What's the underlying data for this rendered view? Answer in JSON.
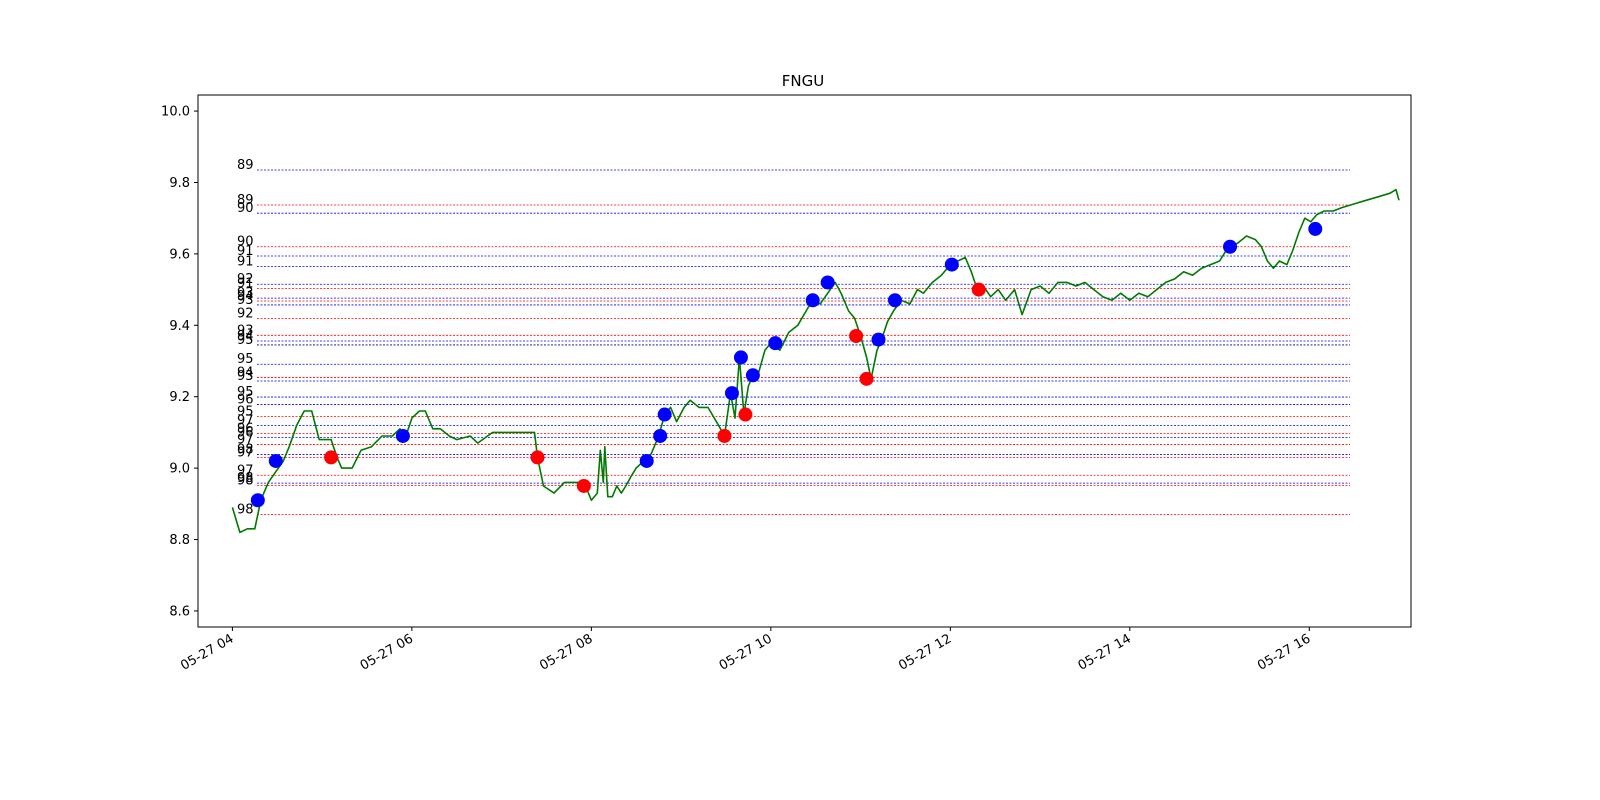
{
  "chart_data": {
    "type": "line",
    "title": "FNGU",
    "xlabel": "",
    "ylabel": "",
    "ylim": [
      8.555,
      10.045
    ],
    "xlim": [
      "2022-05-27 03:37",
      "2022-05-27 17:08"
    ],
    "x_ticks": [
      {
        "t": "2022-05-27 04:00",
        "label": "05-27 04"
      },
      {
        "t": "2022-05-27 06:00",
        "label": "05-27 06"
      },
      {
        "t": "2022-05-27 08:00",
        "label": "05-27 08"
      },
      {
        "t": "2022-05-27 10:00",
        "label": "05-27 10"
      },
      {
        "t": "2022-05-27 12:00",
        "label": "05-27 12"
      },
      {
        "t": "2022-05-27 14:00",
        "label": "05-27 14"
      },
      {
        "t": "2022-05-27 16:00",
        "label": "05-27 16"
      }
    ],
    "y_ticks": [
      8.6,
      8.8,
      9.0,
      9.2,
      9.4,
      9.6,
      9.8,
      10.0
    ],
    "grid": false,
    "series": [
      {
        "kind": "line",
        "color": "#007a00",
        "points": [
          [
            "2022-05-27 04:00",
            8.89
          ],
          [
            "2022-05-27 04:05",
            8.82
          ],
          [
            "2022-05-27 04:10",
            8.83
          ],
          [
            "2022-05-27 04:15",
            8.83
          ],
          [
            "2022-05-27 04:19",
            8.91
          ],
          [
            "2022-05-27 04:24",
            8.96
          ],
          [
            "2022-05-27 04:29",
            8.99
          ],
          [
            "2022-05-27 04:34",
            9.02
          ],
          [
            "2022-05-27 04:38",
            9.06
          ],
          [
            "2022-05-27 04:43",
            9.12
          ],
          [
            "2022-05-27 04:48",
            9.16
          ],
          [
            "2022-05-27 04:53",
            9.16
          ],
          [
            "2022-05-27 04:58",
            9.08
          ],
          [
            "2022-05-27 05:06",
            9.08
          ],
          [
            "2022-05-27 05:10",
            9.03
          ],
          [
            "2022-05-27 05:13",
            9.0
          ],
          [
            "2022-05-27 05:20",
            9.0
          ],
          [
            "2022-05-27 05:26",
            9.05
          ],
          [
            "2022-05-27 05:33",
            9.06
          ],
          [
            "2022-05-27 05:40",
            9.09
          ],
          [
            "2022-05-27 05:47",
            9.09
          ],
          [
            "2022-05-27 05:52",
            9.11
          ],
          [
            "2022-05-27 05:56",
            9.09
          ],
          [
            "2022-05-27 06:00",
            9.14
          ],
          [
            "2022-05-27 06:05",
            9.16
          ],
          [
            "2022-05-27 06:09",
            9.16
          ],
          [
            "2022-05-27 06:14",
            9.11
          ],
          [
            "2022-05-27 06:19",
            9.11
          ],
          [
            "2022-05-27 06:25",
            9.09
          ],
          [
            "2022-05-27 06:30",
            9.08
          ],
          [
            "2022-05-27 06:39",
            9.09
          ],
          [
            "2022-05-27 06:44",
            9.07
          ],
          [
            "2022-05-27 06:54",
            9.1
          ],
          [
            "2022-05-27 07:00",
            9.1
          ],
          [
            "2022-05-27 07:15",
            9.1
          ],
          [
            "2022-05-27 07:22",
            9.1
          ],
          [
            "2022-05-27 07:24",
            9.03
          ],
          [
            "2022-05-27 07:28",
            8.95
          ],
          [
            "2022-05-27 07:35",
            8.93
          ],
          [
            "2022-05-27 07:42",
            8.96
          ],
          [
            "2022-05-27 07:55",
            8.96
          ],
          [
            "2022-05-27 07:56",
            8.95
          ],
          [
            "2022-05-27 08:00",
            8.91
          ],
          [
            "2022-05-27 08:04",
            8.93
          ],
          [
            "2022-05-27 08:06",
            9.05
          ],
          [
            "2022-05-27 08:08",
            8.96
          ],
          [
            "2022-05-27 08:09",
            9.06
          ],
          [
            "2022-05-27 08:11",
            8.92
          ],
          [
            "2022-05-27 08:14",
            8.92
          ],
          [
            "2022-05-27 08:17",
            8.95
          ],
          [
            "2022-05-27 08:20",
            8.93
          ],
          [
            "2022-05-27 08:23",
            8.95
          ],
          [
            "2022-05-27 08:27",
            8.98
          ],
          [
            "2022-05-27 08:30",
            9.0
          ],
          [
            "2022-05-27 08:35",
            9.02
          ],
          [
            "2022-05-27 08:40",
            9.04
          ],
          [
            "2022-05-27 08:45",
            9.09
          ],
          [
            "2022-05-27 08:49",
            9.15
          ],
          [
            "2022-05-27 08:53",
            9.17
          ],
          [
            "2022-05-27 08:57",
            9.13
          ],
          [
            "2022-05-27 09:02",
            9.17
          ],
          [
            "2022-05-27 09:06",
            9.19
          ],
          [
            "2022-05-27 09:12",
            9.17
          ],
          [
            "2022-05-27 09:18",
            9.17
          ],
          [
            "2022-05-27 09:25",
            9.12
          ],
          [
            "2022-05-27 09:29",
            9.09
          ],
          [
            "2022-05-27 09:33",
            9.21
          ],
          [
            "2022-05-27 09:36",
            9.14
          ],
          [
            "2022-05-27 09:39",
            9.31
          ],
          [
            "2022-05-27 09:42",
            9.15
          ],
          [
            "2022-05-27 09:45",
            9.23
          ],
          [
            "2022-05-27 09:48",
            9.26
          ],
          [
            "2022-05-27 09:52",
            9.27
          ],
          [
            "2022-05-27 09:56",
            9.33
          ],
          [
            "2022-05-27 10:00",
            9.35
          ],
          [
            "2022-05-27 10:06",
            9.33
          ],
          [
            "2022-05-27 10:12",
            9.38
          ],
          [
            "2022-05-27 10:18",
            9.4
          ],
          [
            "2022-05-27 10:25",
            9.45
          ],
          [
            "2022-05-27 10:29",
            9.47
          ],
          [
            "2022-05-27 10:33",
            9.46
          ],
          [
            "2022-05-27 10:38",
            9.49
          ],
          [
            "2022-05-27 10:43",
            9.52
          ],
          [
            "2022-05-27 10:47",
            9.49
          ],
          [
            "2022-05-27 10:52",
            9.44
          ],
          [
            "2022-05-27 10:56",
            9.42
          ],
          [
            "2022-05-27 11:00",
            9.37
          ],
          [
            "2022-05-27 11:04",
            9.31
          ],
          [
            "2022-05-27 11:07",
            9.25
          ],
          [
            "2022-05-27 11:11",
            9.33
          ],
          [
            "2022-05-27 11:14",
            9.36
          ],
          [
            "2022-05-27 11:18",
            9.41
          ],
          [
            "2022-05-27 11:22",
            9.44
          ],
          [
            "2022-05-27 11:27",
            9.47
          ],
          [
            "2022-05-27 11:33",
            9.46
          ],
          [
            "2022-05-27 11:38",
            9.5
          ],
          [
            "2022-05-27 11:42",
            9.49
          ],
          [
            "2022-05-27 11:48",
            9.52
          ],
          [
            "2022-05-27 11:54",
            9.54
          ],
          [
            "2022-05-27 12:00",
            9.57
          ],
          [
            "2022-05-27 12:05",
            9.58
          ],
          [
            "2022-05-27 12:10",
            9.59
          ],
          [
            "2022-05-27 12:14",
            9.55
          ],
          [
            "2022-05-27 12:18",
            9.5
          ],
          [
            "2022-05-27 12:22",
            9.51
          ],
          [
            "2022-05-27 12:27",
            9.48
          ],
          [
            "2022-05-27 12:32",
            9.5
          ],
          [
            "2022-05-27 12:37",
            9.47
          ],
          [
            "2022-05-27 12:43",
            9.5
          ],
          [
            "2022-05-27 12:48",
            9.43
          ],
          [
            "2022-05-27 12:54",
            9.5
          ],
          [
            "2022-05-27 13:00",
            9.51
          ],
          [
            "2022-05-27 13:06",
            9.49
          ],
          [
            "2022-05-27 13:12",
            9.52
          ],
          [
            "2022-05-27 13:18",
            9.52
          ],
          [
            "2022-05-27 13:24",
            9.51
          ],
          [
            "2022-05-27 13:30",
            9.52
          ],
          [
            "2022-05-27 13:36",
            9.5
          ],
          [
            "2022-05-27 13:42",
            9.48
          ],
          [
            "2022-05-27 13:48",
            9.47
          ],
          [
            "2022-05-27 13:54",
            9.49
          ],
          [
            "2022-05-27 14:00",
            9.47
          ],
          [
            "2022-05-27 14:06",
            9.49
          ],
          [
            "2022-05-27 14:12",
            9.48
          ],
          [
            "2022-05-27 14:18",
            9.5
          ],
          [
            "2022-05-27 14:24",
            9.52
          ],
          [
            "2022-05-27 14:30",
            9.53
          ],
          [
            "2022-05-27 14:36",
            9.55
          ],
          [
            "2022-05-27 14:42",
            9.54
          ],
          [
            "2022-05-27 14:48",
            9.56
          ],
          [
            "2022-05-27 14:54",
            9.57
          ],
          [
            "2022-05-27 15:00",
            9.58
          ],
          [
            "2022-05-27 15:06",
            9.62
          ],
          [
            "2022-05-27 15:12",
            9.63
          ],
          [
            "2022-05-27 15:18",
            9.65
          ],
          [
            "2022-05-27 15:24",
            9.64
          ],
          [
            "2022-05-27 15:28",
            9.62
          ],
          [
            "2022-05-27 15:32",
            9.58
          ],
          [
            "2022-05-27 15:36",
            9.56
          ],
          [
            "2022-05-27 15:40",
            9.58
          ],
          [
            "2022-05-27 15:45",
            9.57
          ],
          [
            "2022-05-27 15:49",
            9.61
          ],
          [
            "2022-05-27 15:53",
            9.66
          ],
          [
            "2022-05-27 15:57",
            9.7
          ],
          [
            "2022-05-27 16:01",
            9.69
          ],
          [
            "2022-05-27 16:05",
            9.71
          ],
          [
            "2022-05-27 16:10",
            9.72
          ],
          [
            "2022-05-27 16:16",
            9.72
          ],
          [
            "2022-05-27 16:22",
            9.73
          ],
          [
            "2022-05-27 16:30",
            9.74
          ],
          [
            "2022-05-27 16:38",
            9.75
          ],
          [
            "2022-05-27 16:46",
            9.76
          ],
          [
            "2022-05-27 16:54",
            9.77
          ],
          [
            "2022-05-27 16:58",
            9.78
          ],
          [
            "2022-05-27 17:00",
            9.75
          ]
        ]
      },
      {
        "kind": "markers",
        "color": "#0000ff",
        "points": [
          [
            "2022-05-27 04:17",
            8.91
          ],
          [
            "2022-05-27 04:29",
            9.02
          ],
          [
            "2022-05-27 05:54",
            9.09
          ],
          [
            "2022-05-27 08:37",
            9.02
          ],
          [
            "2022-05-27 08:46",
            9.09
          ],
          [
            "2022-05-27 08:49",
            9.15
          ],
          [
            "2022-05-27 09:34",
            9.21
          ],
          [
            "2022-05-27 09:40",
            9.31
          ],
          [
            "2022-05-27 09:48",
            9.26
          ],
          [
            "2022-05-27 10:03",
            9.35
          ],
          [
            "2022-05-27 10:28",
            9.47
          ],
          [
            "2022-05-27 10:38",
            9.52
          ],
          [
            "2022-05-27 11:12",
            9.36
          ],
          [
            "2022-05-27 11:23",
            9.47
          ],
          [
            "2022-05-27 12:01",
            9.57
          ],
          [
            "2022-05-27 15:07",
            9.62
          ],
          [
            "2022-05-27 16:04",
            9.67
          ]
        ]
      },
      {
        "kind": "markers",
        "color": "#ff0000",
        "points": [
          [
            "2022-05-27 05:06",
            9.03
          ],
          [
            "2022-05-27 07:24",
            9.03
          ],
          [
            "2022-05-27 07:55",
            8.95
          ],
          [
            "2022-05-27 09:29",
            9.09
          ],
          [
            "2022-05-27 09:43",
            9.15
          ],
          [
            "2022-05-27 10:57",
            9.37
          ],
          [
            "2022-05-27 11:04",
            9.25
          ],
          [
            "2022-05-27 12:19",
            9.5
          ]
        ]
      }
    ],
    "levels": [
      {
        "y": 9.835,
        "color": "#0000ff",
        "label": "89"
      },
      {
        "y": 9.737,
        "color": "#ff0000",
        "label": "89"
      },
      {
        "y": 9.714,
        "color": "#0000ff",
        "label": "90"
      },
      {
        "y": 9.62,
        "color": "#ff0000",
        "label": "90"
      },
      {
        "y": 9.594,
        "color": "#0000ff",
        "label": "91"
      },
      {
        "y": 9.565,
        "color": "#0000ff",
        "label": "91"
      },
      {
        "y": 9.515,
        "color": "#0000ff",
        "label": "92"
      },
      {
        "y": 9.503,
        "color": "#ff0000",
        "label": "91"
      },
      {
        "y": 9.476,
        "color": "#0000ff",
        "label": "93"
      },
      {
        "y": 9.468,
        "color": "#ff0000",
        "label": "94"
      },
      {
        "y": 9.457,
        "color": "#0000ff",
        "label": "93"
      },
      {
        "y": 9.419,
        "color": "#ff0000",
        "label": "92"
      },
      {
        "y": 9.372,
        "color": "#ff0000",
        "label": "93"
      },
      {
        "y": 9.356,
        "color": "#0000ff",
        "label": "94"
      },
      {
        "y": 9.345,
        "color": "#000080",
        "label": "95"
      },
      {
        "y": 9.291,
        "color": "#0000ff",
        "label": "95"
      },
      {
        "y": 9.254,
        "color": "#ff0000",
        "label": "94"
      },
      {
        "y": 9.244,
        "color": "#0000ff",
        "label": "93"
      },
      {
        "y": 9.199,
        "color": "#0000ff",
        "label": "95"
      },
      {
        "y": 9.178,
        "color": "#0000ff",
        "label": "96"
      },
      {
        "y": 9.145,
        "color": "#ff0000",
        "label": "95"
      },
      {
        "y": 9.119,
        "color": "#0000ff",
        "label": "97"
      },
      {
        "y": 9.097,
        "color": "#ff0000",
        "label": "96"
      },
      {
        "y": 9.086,
        "color": "#0000ff",
        "label": "96"
      },
      {
        "y": 9.066,
        "color": "#ff0000",
        "label": "97"
      },
      {
        "y": 9.038,
        "color": "#0000ff",
        "label": "98"
      },
      {
        "y": 9.03,
        "color": "#ff0000",
        "label": "97"
      },
      {
        "y": 8.98,
        "color": "#ff0000",
        "label": "97"
      },
      {
        "y": 8.958,
        "color": "#0000ff",
        "label": "98"
      },
      {
        "y": 8.951,
        "color": "#ff0000",
        "label": "98"
      },
      {
        "y": 8.87,
        "color": "#ff0000",
        "label": "98"
      }
    ]
  }
}
